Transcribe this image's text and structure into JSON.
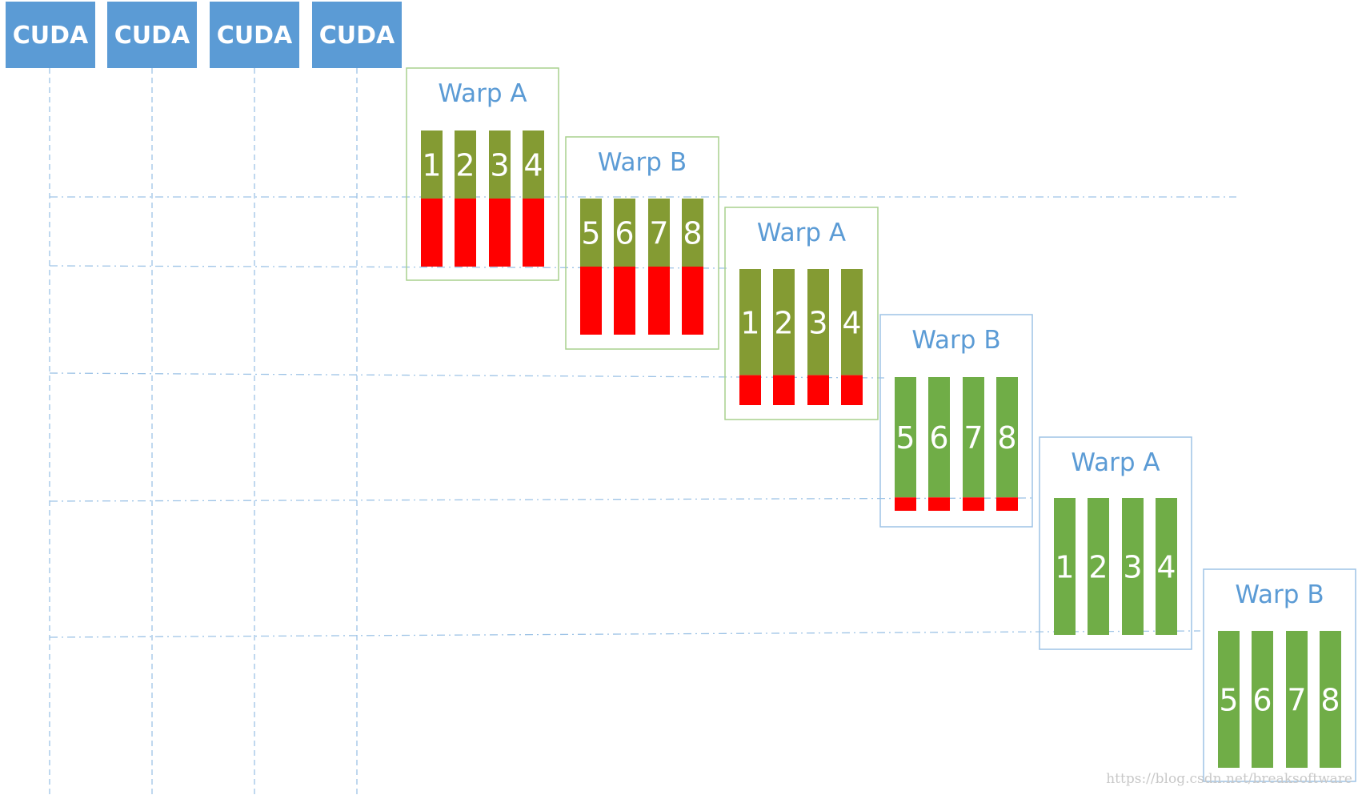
{
  "core_label": "CUDA",
  "cuda_cores": [
    "CUDA",
    "CUDA",
    "CUDA",
    "CUDA"
  ],
  "colors": {
    "core_fill": "#5b9bd5",
    "dashed_line": "#9dc3e6",
    "warp_title": "#5b9bd5",
    "olive_border": "#a9d18e",
    "blue_border": "#9dc3e6",
    "olive_bar": "#849b33",
    "green_bar": "#70ad47",
    "red_bar": "#ff0000"
  },
  "warps": [
    {
      "title": "Warp A",
      "threads": [
        "1",
        "2",
        "3",
        "4"
      ],
      "style": "olive",
      "green_fraction": 0.5
    },
    {
      "title": "Warp B",
      "threads": [
        "5",
        "6",
        "7",
        "8"
      ],
      "style": "olive",
      "green_fraction": 0.5
    },
    {
      "title": "Warp A",
      "threads": [
        "1",
        "2",
        "3",
        "4"
      ],
      "style": "olive",
      "green_fraction": 0.78
    },
    {
      "title": "Warp B",
      "threads": [
        "5",
        "6",
        "7",
        "8"
      ],
      "style": "blue",
      "green_fraction": 0.9
    },
    {
      "title": "Warp A",
      "threads": [
        "1",
        "2",
        "3",
        "4"
      ],
      "style": "blue",
      "green_fraction": 1.0
    },
    {
      "title": "Warp B",
      "threads": [
        "5",
        "6",
        "7",
        "8"
      ],
      "style": "blue",
      "green_fraction": 1.0
    }
  ],
  "watermark": "https://blog.csdn.net/breaksoftware"
}
